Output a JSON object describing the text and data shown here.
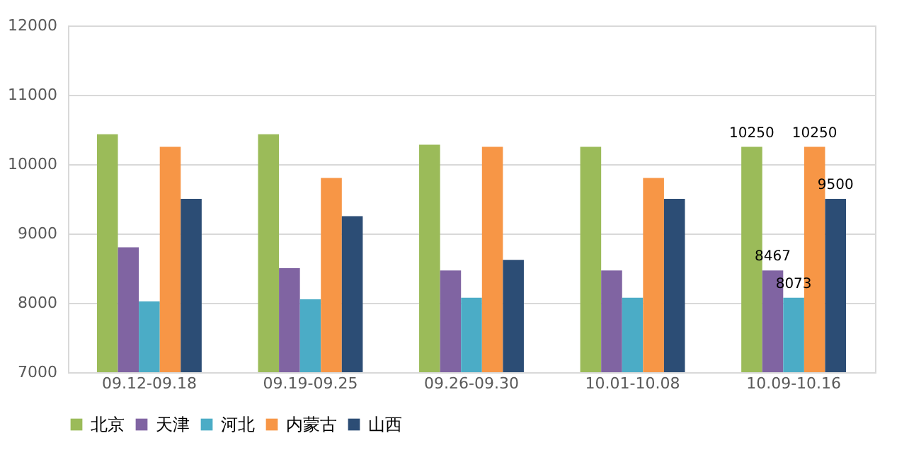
{
  "chart_data": {
    "type": "bar",
    "categories": [
      "09.12-09.18",
      "09.19-09.25",
      "09.26-09.30",
      "10.01-10.08",
      "10.09-10.16"
    ],
    "series": [
      {
        "name": "北京",
        "color": "#9bbb59",
        "values": [
          10430,
          10430,
          10280,
          10250,
          10250
        ],
        "value_labels": [
          null,
          null,
          null,
          null,
          "10250"
        ]
      },
      {
        "name": "天津",
        "color": "#8064a2",
        "values": [
          8800,
          8500,
          8467,
          8467,
          8467
        ],
        "value_labels": [
          null,
          null,
          null,
          null,
          "8467"
        ]
      },
      {
        "name": "河北",
        "color": "#4bacc6",
        "values": [
          8020,
          8050,
          8073,
          8073,
          8073
        ],
        "value_labels": [
          null,
          null,
          null,
          null,
          "8073"
        ]
      },
      {
        "name": "内蒙古",
        "color": "#f79646",
        "values": [
          10250,
          9800,
          10250,
          9800,
          10250
        ],
        "value_labels": [
          null,
          null,
          null,
          null,
          "10250"
        ]
      },
      {
        "name": "山西",
        "color": "#2c4d75",
        "values": [
          9500,
          9250,
          8620,
          9500,
          9500
        ],
        "value_labels": [
          null,
          null,
          null,
          null,
          "9500"
        ]
      }
    ],
    "ylim": [
      7000,
      12000
    ],
    "yticks": [
      7000,
      8000,
      9000,
      10000,
      11000,
      12000
    ],
    "grid": "y",
    "legend": "bottom"
  }
}
